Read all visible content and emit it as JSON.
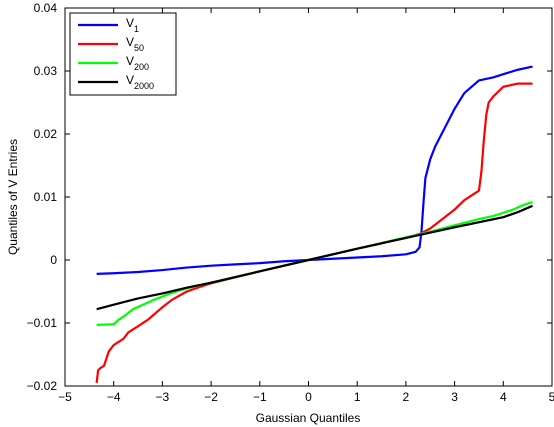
{
  "chart_data": {
    "type": "line",
    "title": "",
    "xlabel": "Gaussian Quantiles",
    "ylabel": "Quantiles of V Entries",
    "xlim": [
      -5,
      5
    ],
    "ylim": [
      -0.02,
      0.04
    ],
    "xticks": [
      -5,
      -4,
      -3,
      -2,
      -1,
      0,
      1,
      2,
      3,
      4,
      5
    ],
    "xtick_labels": [
      "−5",
      "−4",
      "−3",
      "−2",
      "−1",
      "0",
      "1",
      "2",
      "3",
      "4",
      "5"
    ],
    "yticks": [
      -0.02,
      -0.01,
      0,
      0.01,
      0.02,
      0.03,
      0.04
    ],
    "ytick_labels": [
      "−0.02",
      "−0.01",
      "0",
      "0.01",
      "0.02",
      "0.03",
      "0.04"
    ],
    "grid": false,
    "legend_position": "top-left",
    "series": [
      {
        "name": "V",
        "subscript": "1",
        "color": "#0000ff",
        "x": [
          -4.35,
          -4.0,
          -3.5,
          -3.0,
          -2.5,
          -2.0,
          -1.5,
          -1.0,
          -0.5,
          0.0,
          0.5,
          1.0,
          1.5,
          2.0,
          2.2,
          2.28,
          2.32,
          2.36,
          2.4,
          2.5,
          2.6,
          2.8,
          3.0,
          3.2,
          3.5,
          3.8,
          4.0,
          4.3,
          4.6
        ],
        "y": [
          -0.0022,
          -0.0021,
          -0.0019,
          -0.0016,
          -0.0012,
          -0.0009,
          -0.0007,
          -0.0005,
          -0.0002,
          0.0,
          0.0002,
          0.0004,
          0.0006,
          0.0009,
          0.0013,
          0.002,
          0.0045,
          0.009,
          0.013,
          0.016,
          0.018,
          0.021,
          0.024,
          0.0265,
          0.0285,
          0.029,
          0.0295,
          0.0302,
          0.0307
        ]
      },
      {
        "name": "V",
        "subscript": "50",
        "color": "#ff0000",
        "x": [
          -4.35,
          -4.32,
          -4.28,
          -4.2,
          -4.1,
          -4.0,
          -3.9,
          -3.8,
          -3.7,
          -3.5,
          -3.3,
          -3.0,
          -2.8,
          -2.5,
          -2.2,
          -2.0,
          -1.0,
          0.0,
          1.0,
          2.0,
          2.3,
          2.5,
          2.8,
          3.0,
          3.2,
          3.4,
          3.5,
          3.55,
          3.6,
          3.65,
          3.7,
          3.8,
          4.0,
          4.3,
          4.6
        ],
        "y": [
          -0.0195,
          -0.0175,
          -0.0172,
          -0.0168,
          -0.0145,
          -0.0135,
          -0.013,
          -0.0125,
          -0.0115,
          -0.0105,
          -0.0095,
          -0.0075,
          -0.0063,
          -0.005,
          -0.0042,
          -0.0037,
          -0.0018,
          0.0,
          0.0018,
          0.0035,
          0.0042,
          0.005,
          0.0068,
          0.008,
          0.0095,
          0.0105,
          0.011,
          0.014,
          0.019,
          0.023,
          0.025,
          0.026,
          0.0275,
          0.028,
          0.028
        ]
      },
      {
        "name": "V",
        "subscript": "200",
        "color": "#00ff00",
        "x": [
          -4.35,
          -4.0,
          -3.9,
          -3.8,
          -3.6,
          -3.4,
          -3.2,
          -3.0,
          -2.8,
          -2.5,
          -2.0,
          -1.0,
          0.0,
          1.0,
          2.0,
          2.5,
          3.0,
          3.5,
          3.8,
          4.0,
          4.2,
          4.4,
          4.6
        ],
        "y": [
          -0.0103,
          -0.0102,
          -0.0095,
          -0.009,
          -0.0078,
          -0.0071,
          -0.0064,
          -0.0058,
          -0.0052,
          -0.0045,
          -0.0036,
          -0.0018,
          0.0,
          0.0018,
          0.0036,
          0.0045,
          0.0055,
          0.0065,
          0.007,
          0.0075,
          0.008,
          0.0087,
          0.0092
        ]
      },
      {
        "name": "V",
        "subscript": "2000",
        "color": "#000000",
        "x": [
          -4.35,
          -4.0,
          -3.5,
          -3.0,
          -2.5,
          -2.0,
          -1.0,
          0.0,
          1.0,
          2.0,
          3.0,
          4.0,
          4.3,
          4.6
        ],
        "y": [
          -0.0078,
          -0.0071,
          -0.0061,
          -0.0053,
          -0.0044,
          -0.0036,
          -0.0018,
          0.0,
          0.0018,
          0.0035,
          0.0052,
          0.0068,
          0.0076,
          0.0086
        ]
      }
    ]
  }
}
